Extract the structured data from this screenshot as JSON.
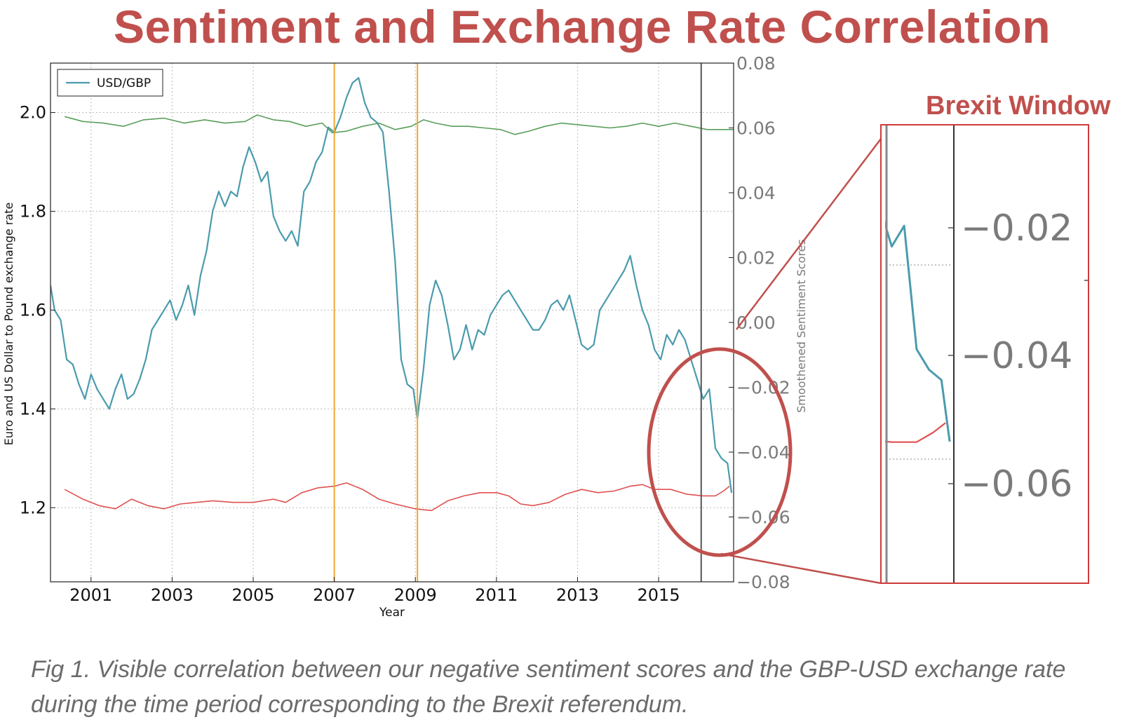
{
  "page": {
    "title": "Sentiment and Exchange Rate Correlation",
    "caption": "Fig 1. Visible correlation between our negative sentiment scores and the GBP-USD exchange rate during the time period corresponding to the Brexit referendum.",
    "zoom_title": "Brexit Window"
  },
  "chart_data": {
    "type": "line",
    "xlabel": "Year",
    "ylabel": "Euro and US Dollar to Pound exchange rate",
    "y2label": "Smoothened Sentiment Scores",
    "xlim": [
      2000.0,
      2016.85
    ],
    "ylim": [
      1.05,
      2.1
    ],
    "y2lim": [
      -0.08,
      0.08
    ],
    "x_ticks": [
      2001,
      2003,
      2005,
      2007,
      2009,
      2011,
      2013,
      2015
    ],
    "y_ticks": [
      1.2,
      1.4,
      1.6,
      1.8,
      2.0
    ],
    "y2_ticks": [
      0.08,
      0.06,
      0.04,
      0.02,
      0.0,
      -0.02,
      -0.04,
      -0.06,
      -0.08
    ],
    "y2_tick_labels": [
      "0.08",
      "0.06",
      "0.04",
      "0.02",
      "0.00",
      "−0.02",
      "−0.04",
      "−0.06",
      "−0.08"
    ],
    "grid": true,
    "legend": {
      "position": "top-left",
      "entries": [
        "USD/GBP"
      ]
    },
    "vertical_lines": [
      {
        "x": 2007.0,
        "color": "#f0a830"
      },
      {
        "x": 2009.05,
        "color": "#f0a830"
      },
      {
        "x": 2016.05,
        "color": "#555555"
      }
    ],
    "series": [
      {
        "name": "USD/GBP",
        "axis": "left",
        "color": "#4a9bad",
        "x": [
          2000.0,
          2000.1,
          2000.25,
          2000.4,
          2000.55,
          2000.7,
          2000.85,
          2001.0,
          2001.15,
          2001.3,
          2001.45,
          2001.6,
          2001.75,
          2001.9,
          2002.05,
          2002.2,
          2002.35,
          2002.5,
          2002.65,
          2002.8,
          2002.95,
          2003.1,
          2003.25,
          2003.4,
          2003.55,
          2003.7,
          2003.85,
          2004.0,
          2004.15,
          2004.3,
          2004.45,
          2004.6,
          2004.75,
          2004.9,
          2005.05,
          2005.2,
          2005.35,
          2005.5,
          2005.65,
          2005.8,
          2005.95,
          2006.1,
          2006.25,
          2006.4,
          2006.55,
          2006.7,
          2006.85,
          2007.0,
          2007.15,
          2007.3,
          2007.45,
          2007.6,
          2007.75,
          2007.9,
          2008.05,
          2008.2,
          2008.35,
          2008.5,
          2008.65,
          2008.8,
          2008.95,
          2009.05,
          2009.2,
          2009.35,
          2009.5,
          2009.65,
          2009.8,
          2009.95,
          2010.1,
          2010.25,
          2010.4,
          2010.55,
          2010.7,
          2010.85,
          2011.0,
          2011.15,
          2011.3,
          2011.45,
          2011.6,
          2011.75,
          2011.9,
          2012.05,
          2012.2,
          2012.35,
          2012.5,
          2012.65,
          2012.8,
          2012.95,
          2013.1,
          2013.25,
          2013.4,
          2013.55,
          2013.7,
          2013.85,
          2014.0,
          2014.15,
          2014.3,
          2014.45,
          2014.6,
          2014.75,
          2014.9,
          2015.05,
          2015.2,
          2015.35,
          2015.5,
          2015.65,
          2015.8,
          2015.95,
          2016.1,
          2016.25,
          2016.4,
          2016.55,
          2016.7,
          2016.8
        ],
        "values": [
          1.65,
          1.6,
          1.58,
          1.5,
          1.49,
          1.45,
          1.42,
          1.47,
          1.44,
          1.42,
          1.4,
          1.44,
          1.47,
          1.42,
          1.43,
          1.46,
          1.5,
          1.56,
          1.58,
          1.6,
          1.62,
          1.58,
          1.61,
          1.65,
          1.59,
          1.67,
          1.72,
          1.8,
          1.84,
          1.81,
          1.84,
          1.83,
          1.89,
          1.93,
          1.9,
          1.86,
          1.88,
          1.79,
          1.76,
          1.74,
          1.76,
          1.73,
          1.84,
          1.86,
          1.9,
          1.92,
          1.97,
          1.96,
          1.99,
          2.03,
          2.06,
          2.07,
          2.02,
          1.99,
          1.98,
          1.96,
          1.84,
          1.7,
          1.5,
          1.45,
          1.44,
          1.38,
          1.48,
          1.61,
          1.66,
          1.63,
          1.57,
          1.5,
          1.52,
          1.57,
          1.52,
          1.56,
          1.55,
          1.59,
          1.61,
          1.63,
          1.64,
          1.62,
          1.6,
          1.58,
          1.56,
          1.56,
          1.58,
          1.61,
          1.62,
          1.6,
          1.63,
          1.58,
          1.53,
          1.52,
          1.53,
          1.6,
          1.62,
          1.64,
          1.66,
          1.68,
          1.71,
          1.65,
          1.6,
          1.57,
          1.52,
          1.5,
          1.55,
          1.53,
          1.56,
          1.54,
          1.5,
          1.46,
          1.42,
          1.44,
          1.32,
          1.3,
          1.29,
          1.23
        ]
      },
      {
        "name": "",
        "axis": "right",
        "color": "#5a9e5a",
        "x": [
          2000.35,
          2000.8,
          2001.3,
          2001.8,
          2002.3,
          2002.8,
          2003.3,
          2003.8,
          2004.3,
          2004.8,
          2005.1,
          2005.5,
          2005.9,
          2006.3,
          2006.7,
          2006.95,
          2007.3,
          2007.7,
          2008.1,
          2008.5,
          2008.9,
          2009.2,
          2009.5,
          2009.9,
          2010.3,
          2010.7,
          2011.1,
          2011.45,
          2011.8,
          2012.2,
          2012.6,
          2013.0,
          2013.4,
          2013.8,
          2014.2,
          2014.6,
          2015.0,
          2015.4,
          2015.8,
          2016.2,
          2016.6,
          2016.85
        ],
        "values": [
          0.0635,
          0.062,
          0.0615,
          0.0605,
          0.0625,
          0.063,
          0.0615,
          0.0625,
          0.0615,
          0.062,
          0.064,
          0.0625,
          0.062,
          0.0605,
          0.0615,
          0.0585,
          0.059,
          0.0605,
          0.0615,
          0.0595,
          0.0605,
          0.0625,
          0.0615,
          0.0605,
          0.0605,
          0.06,
          0.0595,
          0.058,
          0.059,
          0.0605,
          0.0615,
          0.061,
          0.0605,
          0.06,
          0.0605,
          0.0615,
          0.0605,
          0.0615,
          0.0605,
          0.0595,
          0.0595,
          0.0595
        ]
      },
      {
        "name": "",
        "axis": "right",
        "color": "#e05050",
        "x": [
          2000.35,
          2000.8,
          2001.2,
          2001.6,
          2002.0,
          2002.4,
          2002.8,
          2003.2,
          2003.6,
          2004.0,
          2004.5,
          2005.0,
          2005.5,
          2005.8,
          2006.2,
          2006.6,
          2007.0,
          2007.3,
          2007.7,
          2008.1,
          2008.5,
          2009.0,
          2009.4,
          2009.8,
          2010.2,
          2010.6,
          2011.0,
          2011.3,
          2011.6,
          2011.9,
          2012.3,
          2012.7,
          2013.1,
          2013.5,
          2013.9,
          2014.3,
          2014.6,
          2014.9,
          2015.3,
          2015.7,
          2016.1,
          2016.4,
          2016.6,
          2016.75
        ],
        "values": [
          -0.0515,
          -0.0545,
          -0.0565,
          -0.0575,
          -0.0545,
          -0.0565,
          -0.0575,
          -0.056,
          -0.0555,
          -0.055,
          -0.0555,
          -0.0555,
          -0.0545,
          -0.0555,
          -0.0525,
          -0.051,
          -0.0505,
          -0.0495,
          -0.0515,
          -0.0545,
          -0.056,
          -0.0575,
          -0.058,
          -0.055,
          -0.0535,
          -0.0525,
          -0.0525,
          -0.0535,
          -0.056,
          -0.0565,
          -0.0555,
          -0.053,
          -0.0515,
          -0.0525,
          -0.052,
          -0.0505,
          -0.05,
          -0.0515,
          -0.0515,
          -0.053,
          -0.0535,
          -0.0535,
          -0.052,
          -0.0505
        ]
      }
    ],
    "zoom_inset": {
      "title": "Brexit Window",
      "y2_ticks": [
        -0.02,
        -0.04,
        -0.06
      ],
      "y2_tick_labels": [
        "−0.02",
        "−0.04",
        "−0.06"
      ]
    }
  }
}
